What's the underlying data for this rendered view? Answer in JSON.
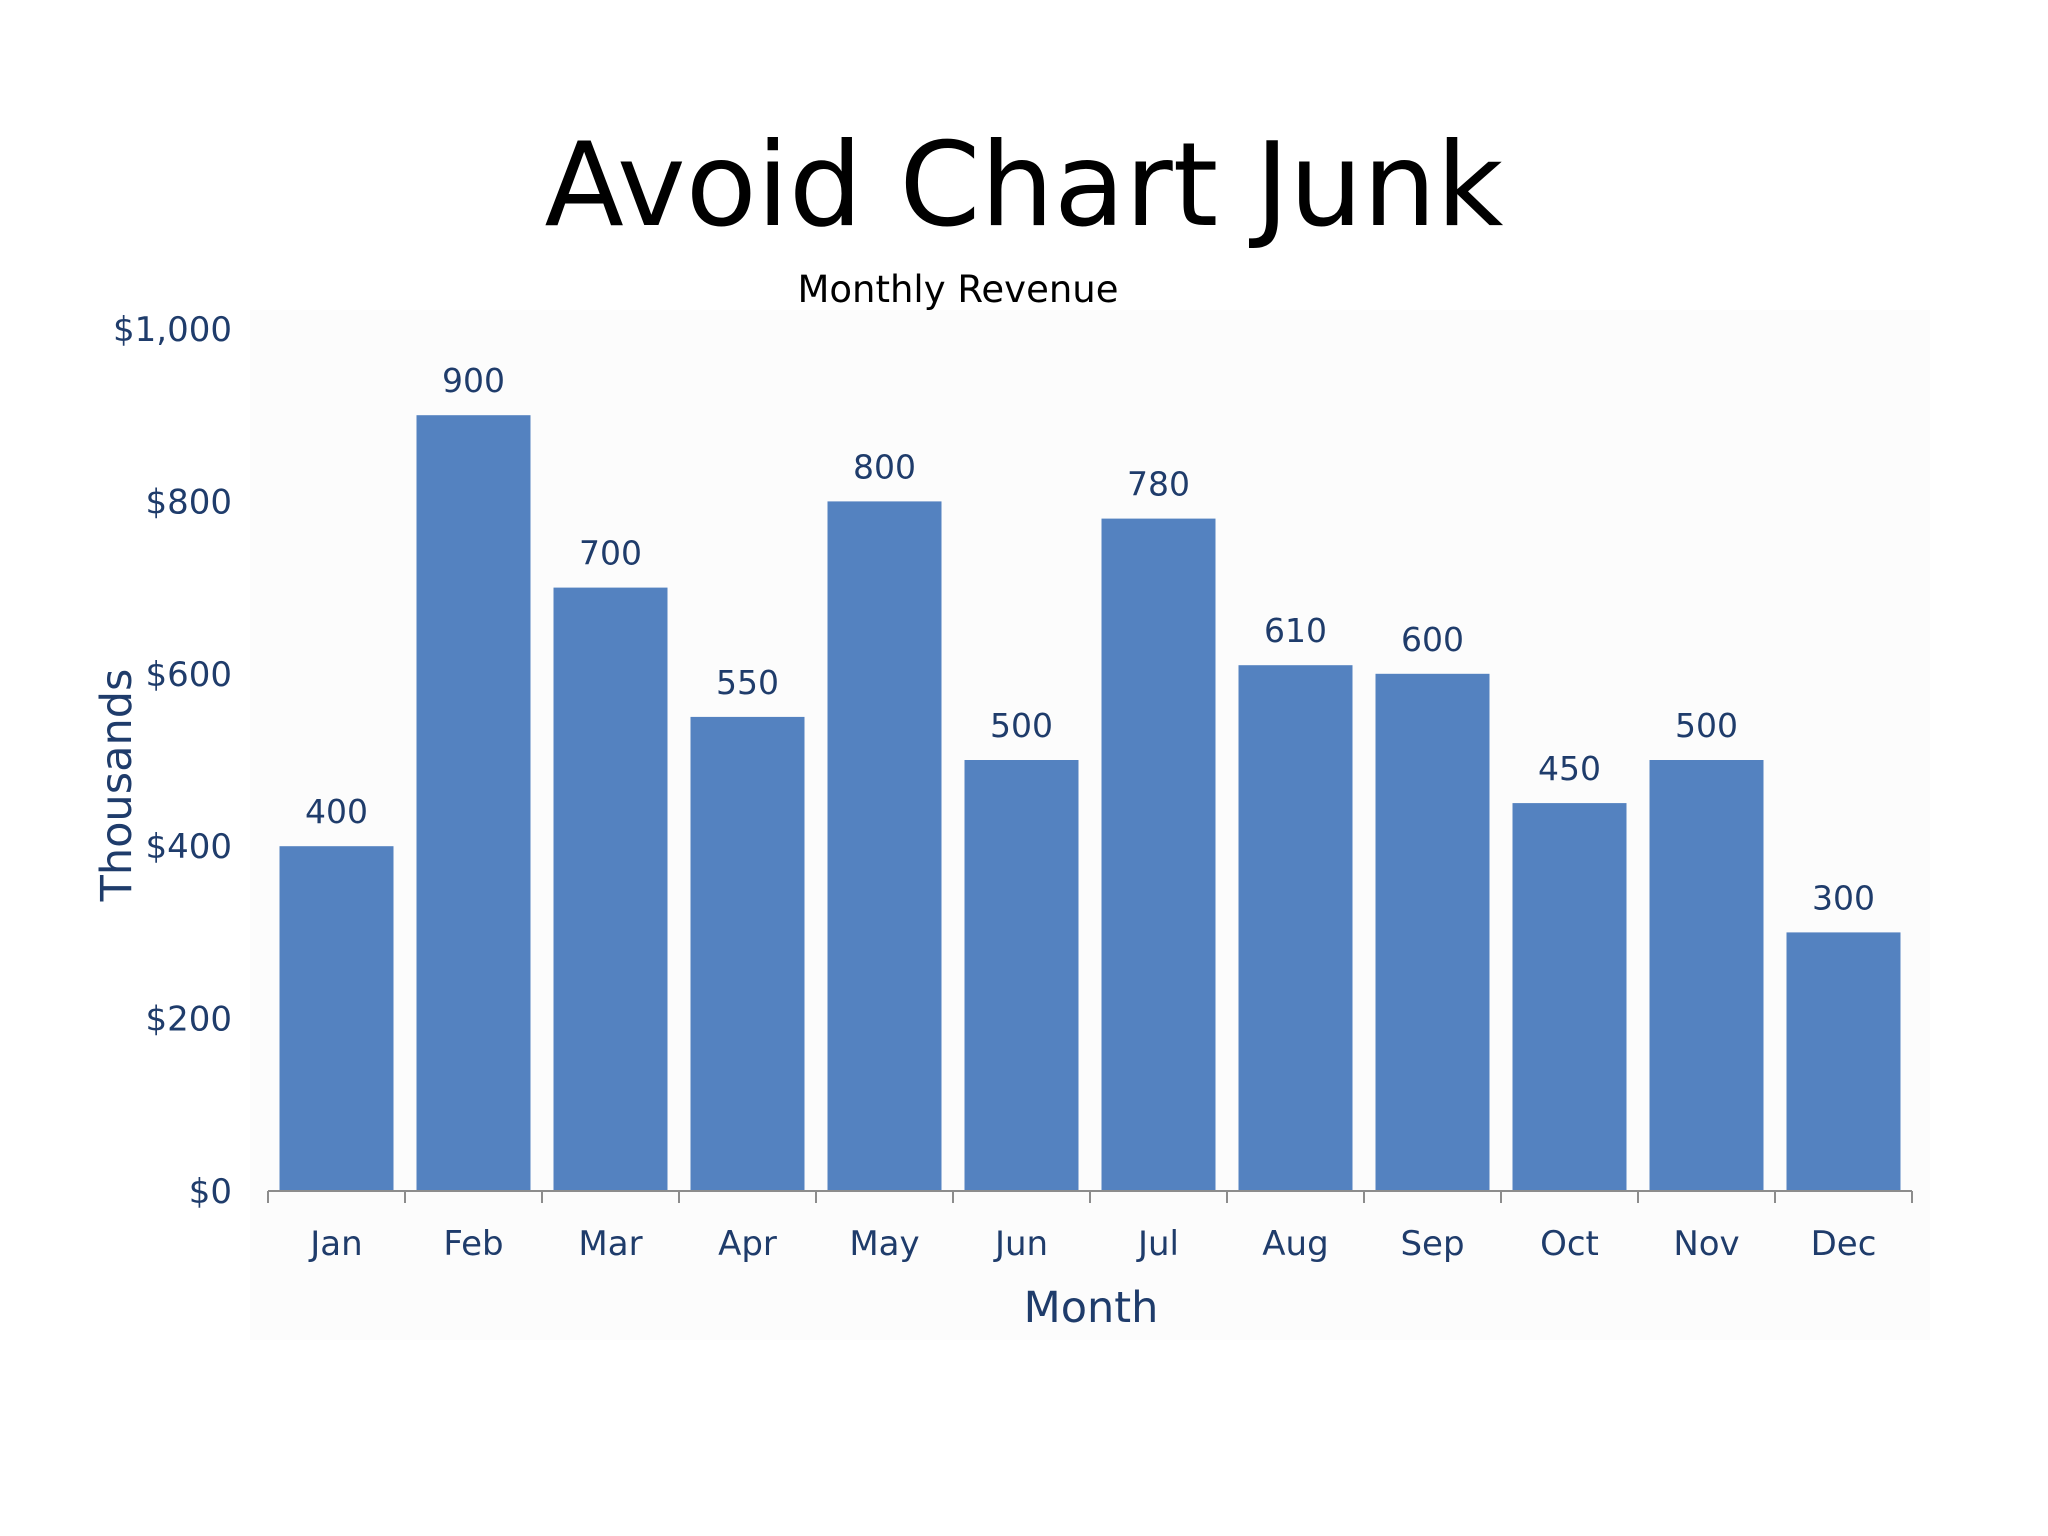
{
  "slide": {
    "title": "Avoid Chart Junk"
  },
  "colors": {
    "bar": "#5482c0",
    "text": "#1f3c6b",
    "axis": "#8c8c8c",
    "plot_background": "#fcfcfc"
  },
  "chart_data": {
    "type": "bar",
    "title": "Monthly Revenue",
    "xlabel": "Month",
    "ylabel": "Thousands",
    "categories": [
      "Jan",
      "Feb",
      "Mar",
      "Apr",
      "May",
      "Jun",
      "Jul",
      "Aug",
      "Sep",
      "Oct",
      "Nov",
      "Dec"
    ],
    "values": [
      400,
      900,
      700,
      550,
      800,
      500,
      780,
      610,
      600,
      450,
      500,
      300
    ],
    "data_labels": [
      "400",
      "900",
      "700",
      "550",
      "800",
      "500",
      "780",
      "610",
      "600",
      "450",
      "500",
      "300"
    ],
    "ylim": [
      0,
      1000
    ],
    "yticks": [
      0,
      200,
      400,
      600,
      800,
      1000
    ],
    "ytick_labels": [
      "$0",
      "$200",
      "$400",
      "$600",
      "$800",
      "$1,000"
    ],
    "grid": false,
    "legend": "none"
  }
}
